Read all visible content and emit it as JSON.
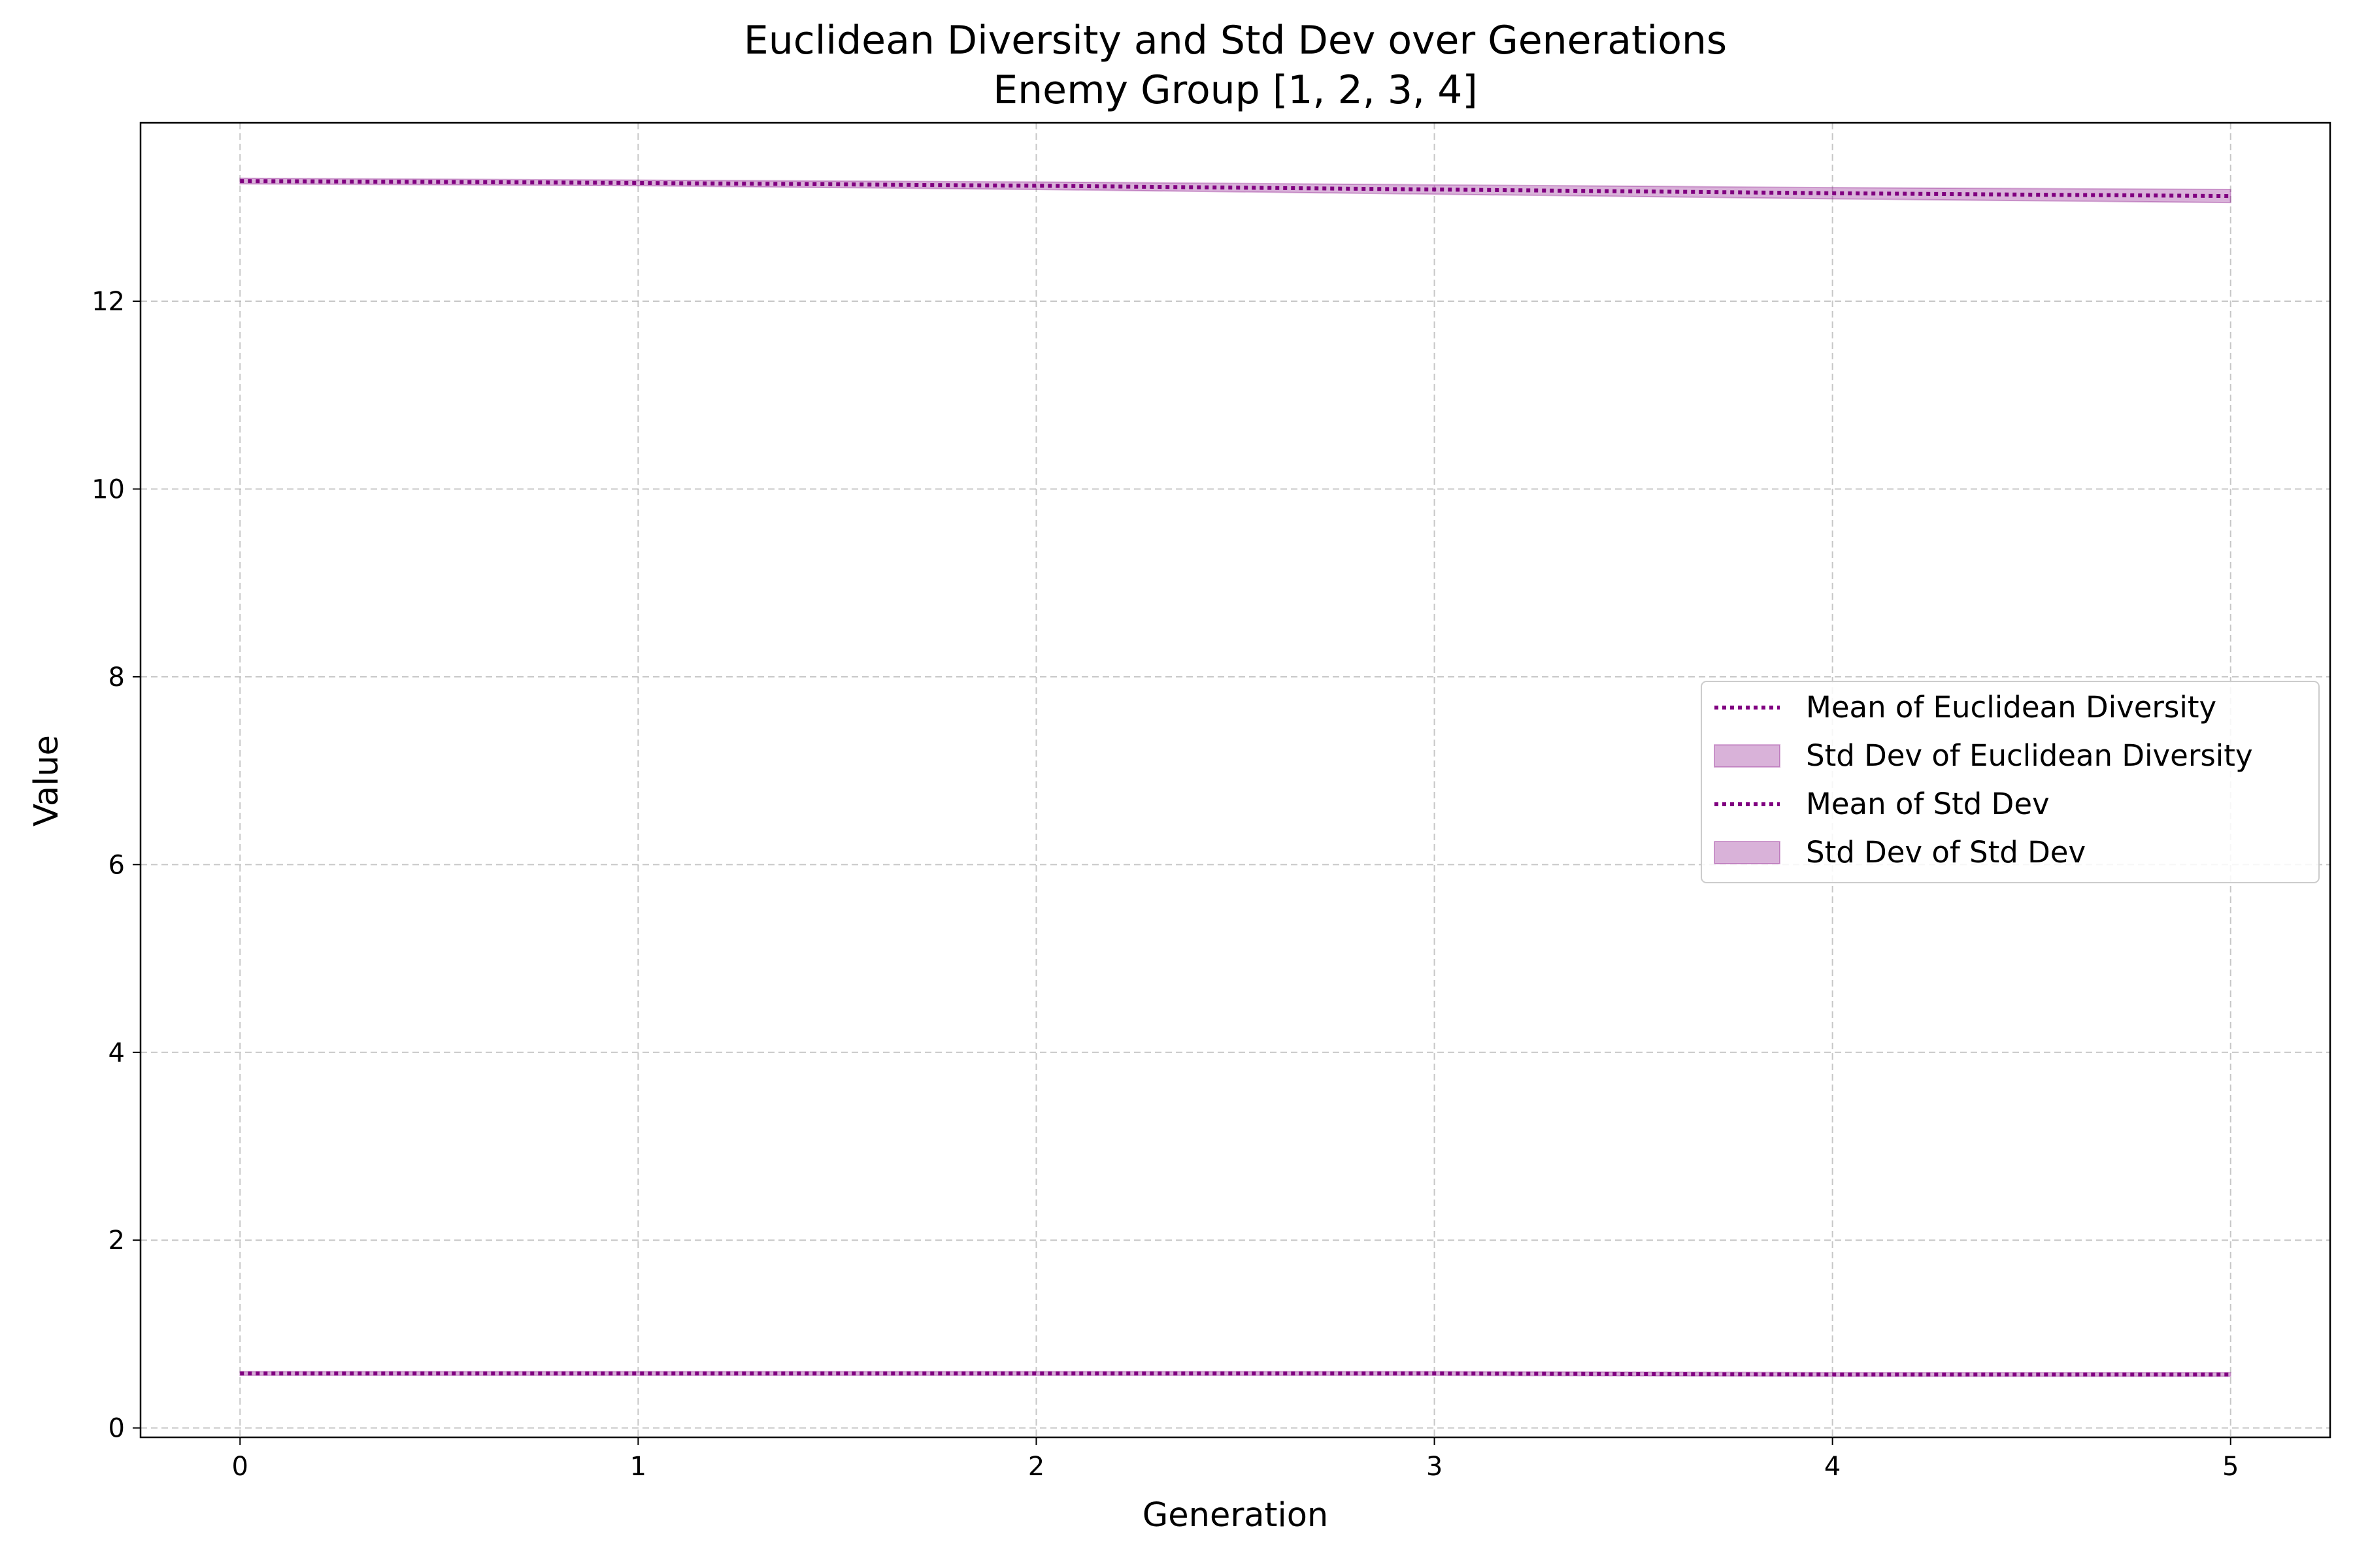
{
  "chart_data": {
    "type": "line",
    "title": "Euclidean Diversity and Std Dev over Generations",
    "subtitle": "Enemy Group [1, 2, 3, 4]",
    "xlabel": "Generation",
    "ylabel": "Value",
    "xlim": [
      -0.25,
      5.25
    ],
    "ylim": [
      -0.1,
      13.9
    ],
    "x_ticks": [
      0,
      1,
      2,
      3,
      4,
      5
    ],
    "y_ticks": [
      0,
      2,
      4,
      6,
      8,
      10,
      12
    ],
    "grid": true,
    "legend_position": "center-right",
    "x": [
      0,
      1,
      2,
      3,
      4,
      5
    ],
    "series": [
      {
        "name": "Mean of Euclidean Diversity",
        "kind": "line",
        "style": "dotted",
        "color": "#800080",
        "values": [
          13.28,
          13.26,
          13.23,
          13.19,
          13.15,
          13.12
        ]
      },
      {
        "name": "Std Dev of Euclidean Diversity",
        "kind": "band",
        "color": "#800080",
        "lower": [
          13.25,
          13.23,
          13.19,
          13.14,
          13.09,
          13.05
        ],
        "upper": [
          13.31,
          13.29,
          13.27,
          13.24,
          13.21,
          13.19
        ]
      },
      {
        "name": "Mean of Std Dev",
        "kind": "line",
        "style": "dotted",
        "color": "#800080",
        "values": [
          0.58,
          0.58,
          0.58,
          0.58,
          0.57,
          0.57
        ]
      },
      {
        "name": "Std Dev of Std Dev",
        "kind": "band",
        "color": "#800080",
        "lower": [
          0.56,
          0.56,
          0.56,
          0.56,
          0.55,
          0.55
        ],
        "upper": [
          0.6,
          0.6,
          0.6,
          0.6,
          0.59,
          0.59
        ]
      }
    ]
  }
}
